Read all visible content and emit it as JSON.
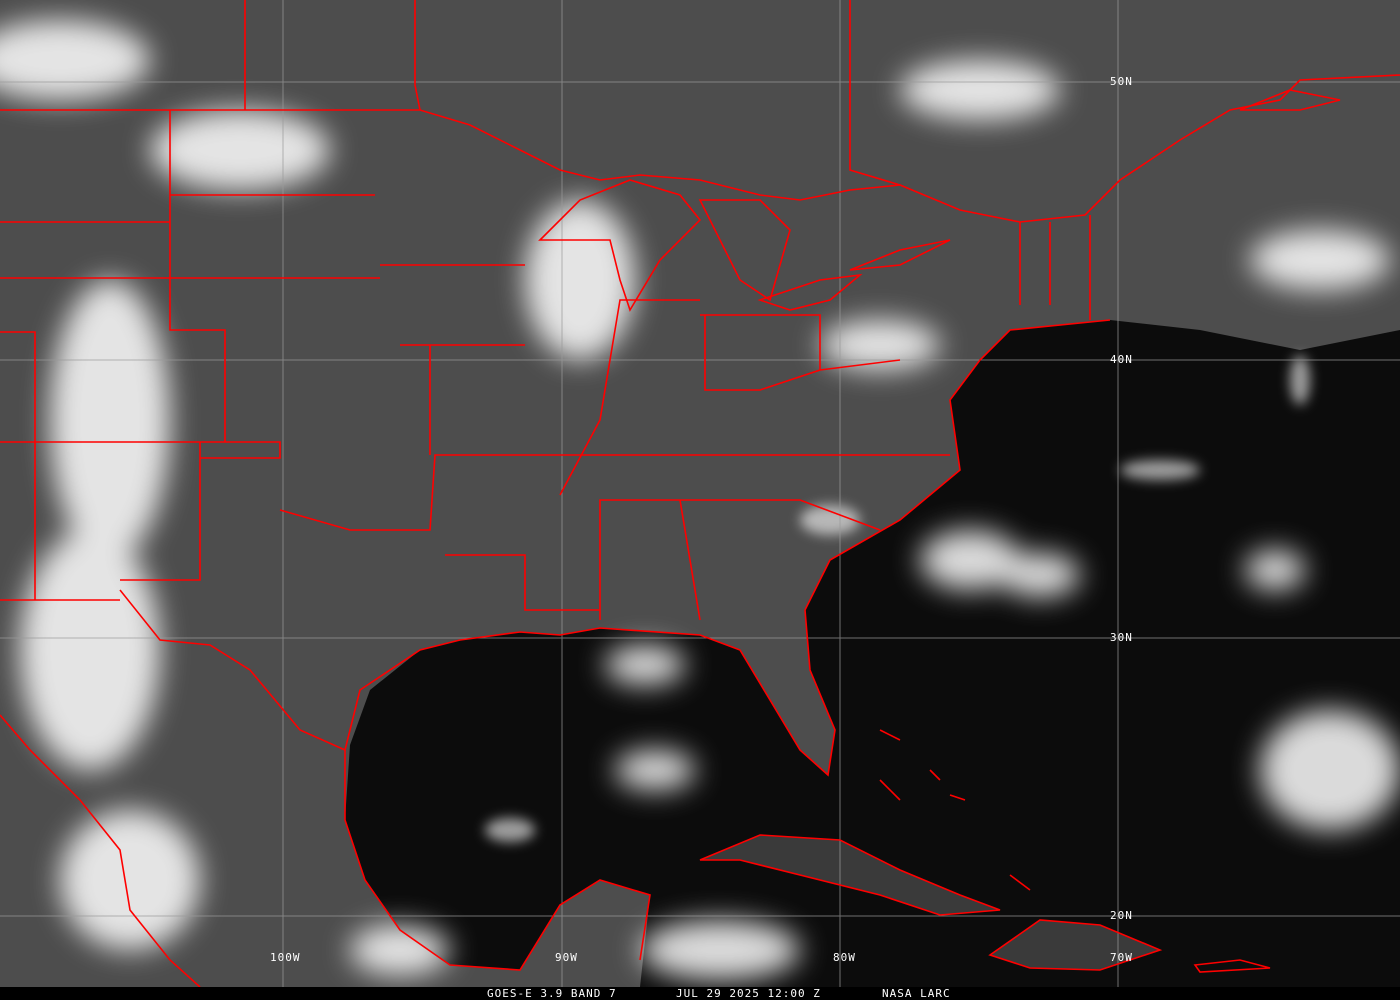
{
  "caption": {
    "satellite": "GOES-E 3.9 BAND 7",
    "datetime": "JUL 29 2025 12:00 Z",
    "source": "NASA LARC"
  },
  "latitude_labels": [
    "50N",
    "40N",
    "30N",
    "20N"
  ],
  "longitude_labels": [
    "100W",
    "90W",
    "80W",
    "70W"
  ],
  "colors": {
    "borders": "#ff0000",
    "grid": "#9a9a9a",
    "land": "#4a4a4a",
    "ocean": "#0c0c0c",
    "cloud": "#ffffff"
  }
}
